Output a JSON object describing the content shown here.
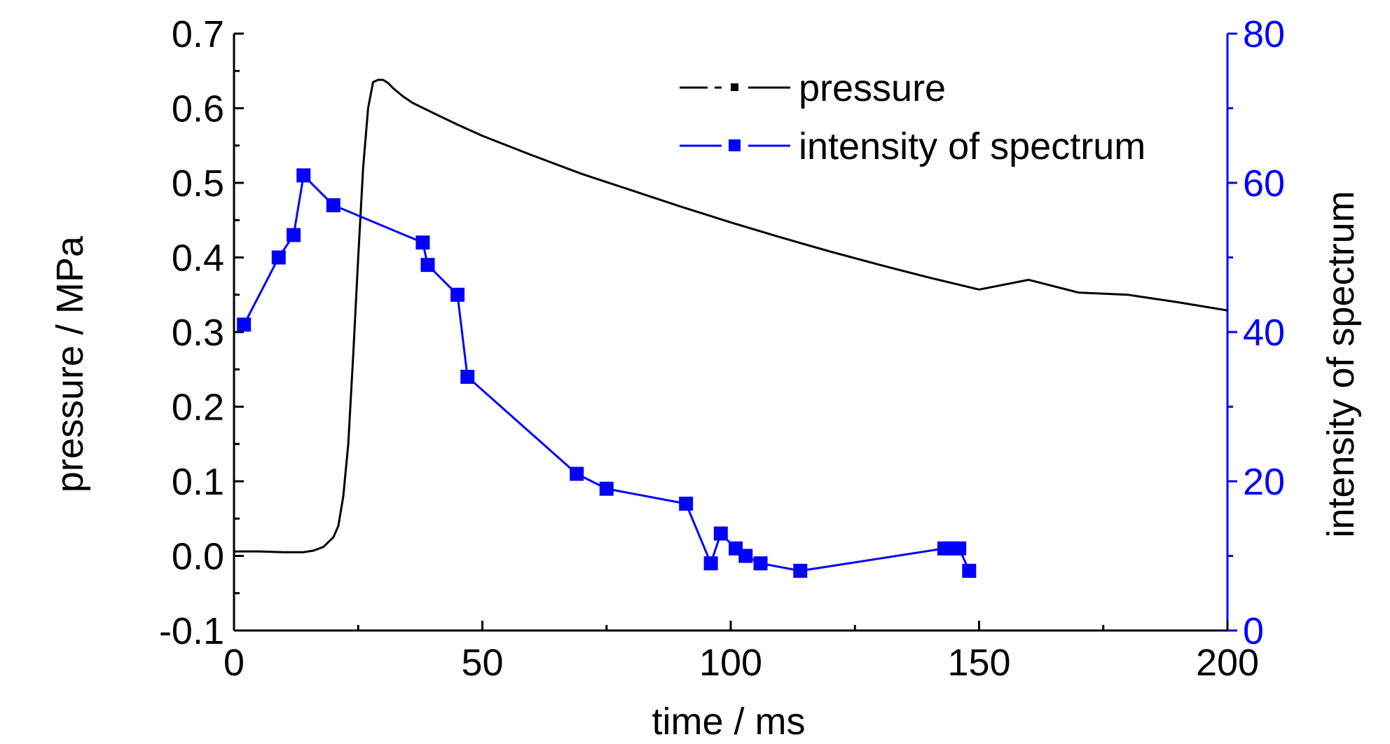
{
  "chart_data": {
    "type": "line",
    "xlabel": "time / ms",
    "ylabel_left": "pressure / MPa",
    "ylabel_right": "intensity of spectrum",
    "xlim": [
      0,
      200
    ],
    "ylim_left": [
      -0.1,
      0.7
    ],
    "ylim_right": [
      0,
      80
    ],
    "x_ticks": [
      "0",
      "50",
      "100",
      "150",
      "200"
    ],
    "y_left_ticks": [
      "-0.1",
      "0.0",
      "0.1",
      "0.2",
      "0.3",
      "0.4",
      "0.5",
      "0.6",
      "0.7"
    ],
    "y_right_ticks": [
      "0",
      "20",
      "40",
      "60",
      "80"
    ],
    "legend_position": "top-right",
    "colors": {
      "pressure": "#000000",
      "intensity": "#0000ff"
    },
    "series": [
      {
        "name": "pressure",
        "axis": "left",
        "marker": "none",
        "x": [
          0,
          5,
          10,
          12,
          14,
          16,
          18,
          20,
          21,
          22,
          23,
          24,
          25,
          26,
          27,
          28,
          29,
          30,
          31,
          32,
          34,
          36,
          40,
          45,
          50,
          60,
          70,
          80,
          90,
          100,
          110,
          120,
          130,
          140,
          150,
          160,
          170,
          180,
          190,
          200
        ],
        "y": [
          0.006,
          0.006,
          0.005,
          0.005,
          0.005,
          0.007,
          0.012,
          0.025,
          0.04,
          0.08,
          0.15,
          0.27,
          0.4,
          0.52,
          0.6,
          0.635,
          0.638,
          0.638,
          0.634,
          0.627,
          0.616,
          0.607,
          0.594,
          0.578,
          0.563,
          0.537,
          0.512,
          0.49,
          0.468,
          0.447,
          0.427,
          0.408,
          0.39,
          0.373,
          0.357,
          0.37,
          0.353,
          0.35,
          0.34,
          0.329
        ]
      },
      {
        "name": "intensity of spectrum",
        "axis": "right",
        "marker": "square",
        "x": [
          2,
          9,
          12,
          14,
          20,
          38,
          39,
          45,
          47,
          69,
          75,
          91,
          96,
          98,
          101,
          103,
          106,
          114,
          143,
          145,
          146,
          148
        ],
        "y": [
          41,
          50,
          53,
          61,
          57,
          52,
          49,
          45,
          34,
          21,
          19,
          17,
          9,
          13,
          11,
          10,
          9,
          8,
          11,
          11,
          11,
          8
        ]
      }
    ]
  }
}
